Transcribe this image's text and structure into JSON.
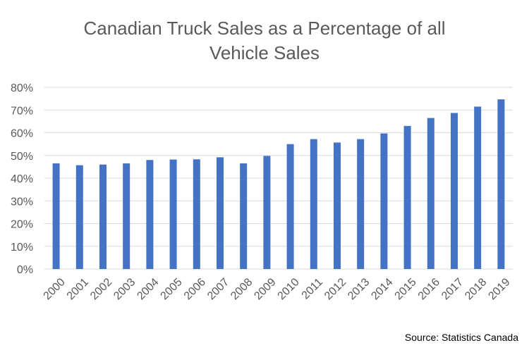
{
  "chart_data": {
    "type": "bar",
    "title_line1": "Canadian Truck Sales as a Percentage of all",
    "title_line2": "Vehicle Sales",
    "categories": [
      "2000",
      "2001",
      "2002",
      "2003",
      "2004",
      "2005",
      "2006",
      "2007",
      "2008",
      "2009",
      "2010",
      "2011",
      "2012",
      "2013",
      "2014",
      "2015",
      "2016",
      "2017",
      "2018",
      "2019"
    ],
    "values": [
      46.5,
      45.7,
      46.0,
      46.5,
      48.0,
      48.2,
      48.3,
      49.2,
      46.5,
      49.8,
      55.0,
      57.2,
      55.7,
      57.2,
      59.7,
      63.0,
      66.5,
      68.7,
      71.5,
      74.7
    ],
    "y_ticks": [
      "0%",
      "10%",
      "20%",
      "30%",
      "40%",
      "50%",
      "60%",
      "70%",
      "80%"
    ],
    "ylim": [
      0,
      80
    ],
    "grid": true,
    "bar_color": "#4472C4",
    "source": "Source: Statistics Canada"
  }
}
